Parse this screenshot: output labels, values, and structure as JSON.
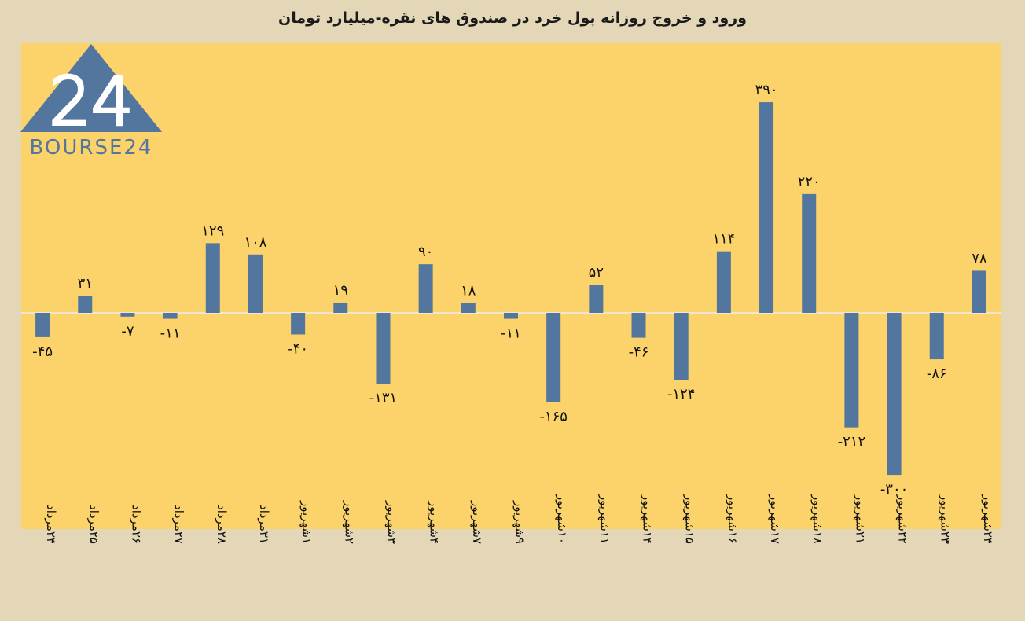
{
  "chart_data": {
    "type": "bar",
    "title": "ورود و خروج روزانه پول خرد در صندوق های نقره-میلیارد تومان",
    "categories": [
      "۲۴مرداد",
      "۲۵مرداد",
      "۲۶مرداد",
      "۲۷مرداد",
      "۲۸مرداد",
      "۳۱مرداد",
      "۱شهریور",
      "۲شهریور",
      "۳شهریور",
      "۴شهریور",
      "۷شهریور",
      "۹شهریور",
      "۱۰شهریور",
      "۱۱شهریور",
      "۱۴شهریور",
      "۱۵شهریور",
      "۱۶شهریور",
      "۱۷شهریور",
      "۱۸شهریور",
      "۲۱شهریور",
      "۲۲شهریور",
      "۲۳شهریور",
      "۲۴شهریور"
    ],
    "values": [
      -45,
      31,
      -7,
      -11,
      129,
      108,
      -40,
      19,
      -131,
      90,
      18,
      -11,
      -165,
      52,
      -46,
      -124,
      114,
      390,
      220,
      -212,
      -300,
      -86,
      78
    ],
    "data_labels": [
      "-۴۵",
      "۳۱",
      "-۷",
      "-۱۱",
      "۱۲۹",
      "۱۰۸",
      "-۴۰",
      "۱۹",
      "-۱۳۱",
      "۹۰",
      "۱۸",
      "-۱۱",
      "-۱۶۵",
      "۵۲",
      "-۴۶",
      "-۱۲۴",
      "۱۱۴",
      "۳۹۰",
      "۲۲۰",
      "-۲۱۲",
      "-۳۰۰",
      "-۸۶",
      "۷۸"
    ],
    "ylim": [
      -400,
      420
    ],
    "grid": false,
    "bar_color": "#53769e",
    "plot_background": "#fcd36a",
    "page_background": "#e3d7b8"
  },
  "logo": {
    "text": "BOURSE24",
    "mark": "24",
    "color": "#53769e",
    "icon": "bourse24-triangle-logo"
  }
}
